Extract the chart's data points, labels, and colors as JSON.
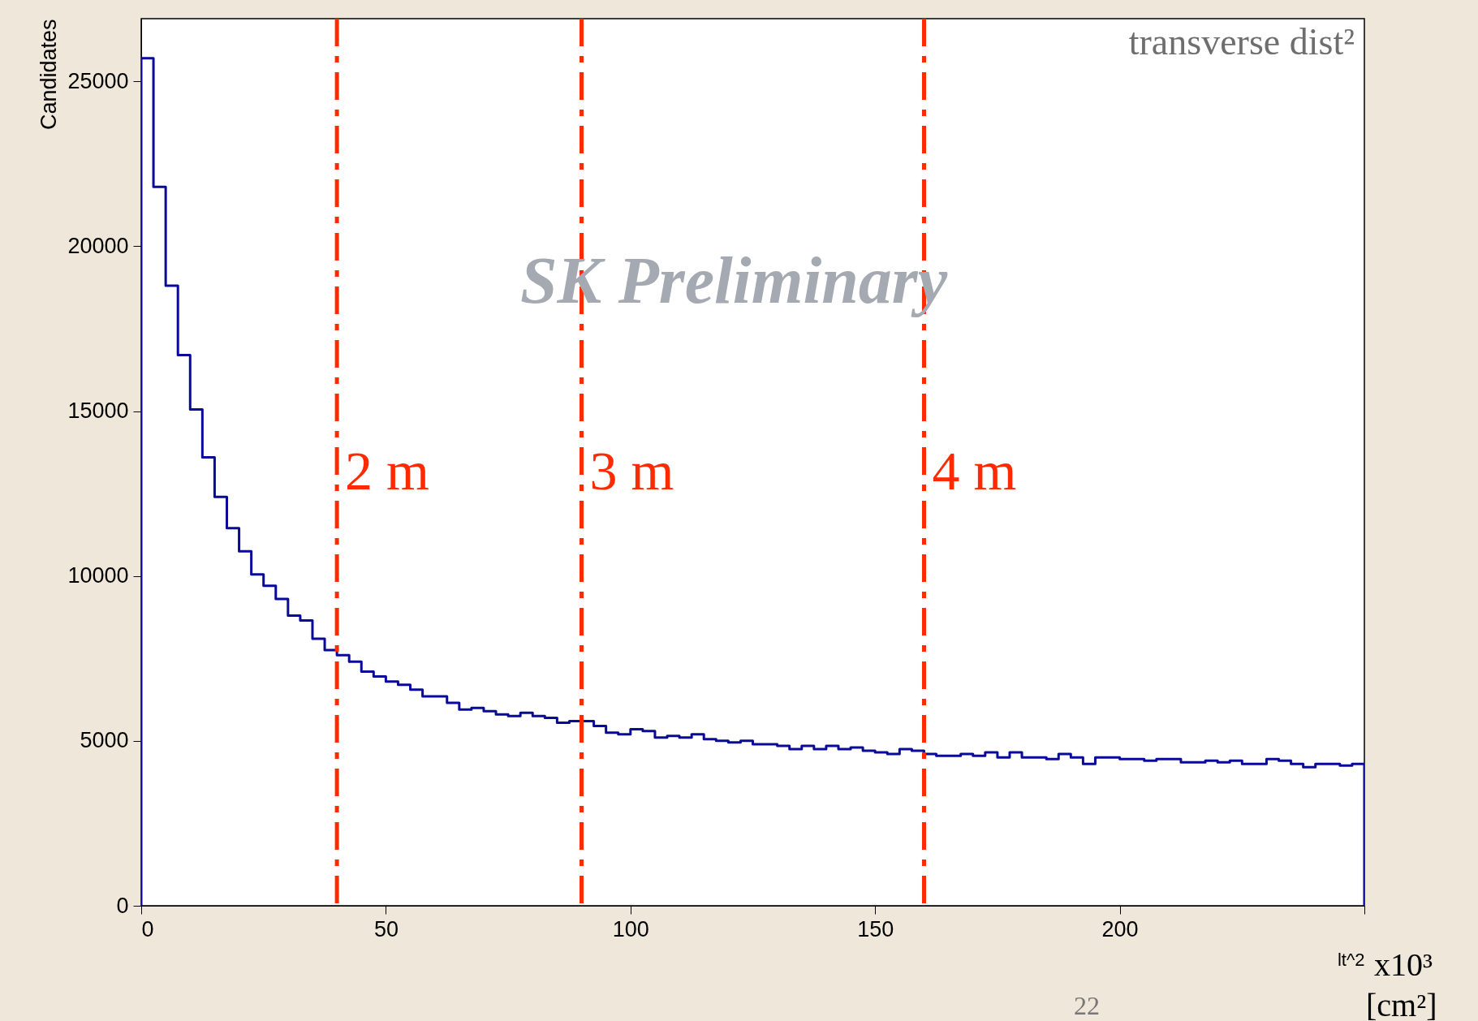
{
  "chart_data": {
    "type": "histogram",
    "ylabel": "Candidates",
    "xlabel": "lt^2",
    "bins": [
      0,
      2.5,
      5,
      7.5,
      10,
      12.5,
      15,
      17.5,
      20,
      22.5,
      25,
      27.5,
      30,
      32.5,
      35,
      37.5,
      40,
      42.5,
      45,
      47.5,
      50,
      52.5,
      55,
      57.5,
      60,
      62.5,
      65,
      67.5,
      70,
      72.5,
      75,
      77.5,
      80,
      82.5,
      85,
      87.5,
      90,
      92.5,
      95,
      97.5,
      100,
      102.5,
      105,
      107.5,
      110,
      112.5,
      115,
      117.5,
      120,
      122.5,
      125,
      127.5,
      130,
      132.5,
      135,
      137.5,
      140,
      142.5,
      145,
      147.5,
      150,
      152.5,
      155,
      157.5,
      160,
      162.5,
      165,
      167.5,
      170,
      172.5,
      175,
      177.5,
      180,
      182.5,
      185,
      187.5,
      190,
      192.5,
      195,
      197.5,
      200,
      202.5,
      205,
      207.5,
      210,
      212.5,
      215,
      217.5,
      220,
      222.5,
      225,
      227.5,
      230,
      232.5,
      235,
      237.5,
      240,
      242.5,
      245,
      247.5,
      250
    ],
    "values": [
      25700,
      21800,
      18800,
      16700,
      15050,
      13600,
      12400,
      11450,
      10750,
      10050,
      9700,
      9300,
      8800,
      8650,
      8100,
      7750,
      7600,
      7400,
      7100,
      6950,
      6800,
      6700,
      6550,
      6350,
      6350,
      6150,
      5950,
      6000,
      5900,
      5800,
      5750,
      5850,
      5750,
      5700,
      5550,
      5600,
      5600,
      5450,
      5250,
      5200,
      5350,
      5300,
      5100,
      5150,
      5100,
      5200,
      5050,
      5000,
      4950,
      5000,
      4900,
      4900,
      4850,
      4750,
      4850,
      4750,
      4850,
      4750,
      4800,
      4700,
      4650,
      4600,
      4750,
      4700,
      4600,
      4550,
      4550,
      4600,
      4550,
      4650,
      4500,
      4650,
      4500,
      4500,
      4450,
      4600,
      4500,
      4300,
      4500,
      4500,
      4450,
      4450,
      4400,
      4450,
      4450,
      4350,
      4350,
      4400,
      4350,
      4400,
      4300,
      4300,
      4450,
      4400,
      4300,
      4200,
      4300,
      4300,
      4250,
      4300
    ],
    "color": "#0a0a9a",
    "xlim": [
      0,
      250
    ],
    "xticks": [
      0,
      50,
      100,
      150,
      200,
      {
        "value": 250,
        "label": null
      }
    ],
    "ylim": [
      0,
      26900
    ],
    "yticks": [
      0,
      5000,
      10000,
      15000,
      20000,
      25000
    ],
    "grid": false,
    "ref_lines": [
      {
        "axis": "x",
        "value": 40,
        "label": "2 m",
        "color": "#ff2a00",
        "line_style": "dashed"
      },
      {
        "axis": "x",
        "value": 90,
        "label": "3 m",
        "color": "#ff2a00",
        "line_style": "dashed"
      },
      {
        "axis": "x",
        "value": 160,
        "label": "4 m",
        "color": "#ff2a00",
        "line_style": "dashed"
      }
    ],
    "annotations": [
      "transverse dist²",
      "SK Preliminary",
      "x10³",
      "[cm²]",
      "22"
    ]
  }
}
